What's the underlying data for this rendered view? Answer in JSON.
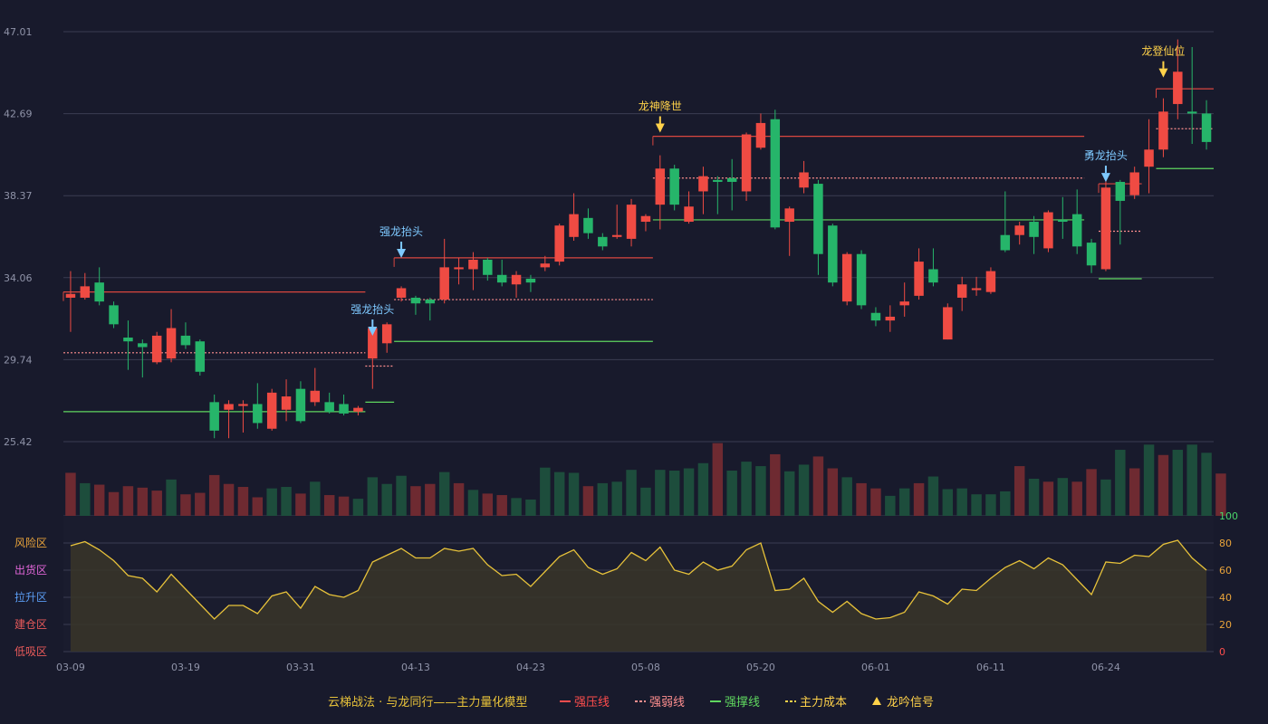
{
  "chart_data": {
    "type": "candlestick",
    "price_axis": {
      "ticks": [
        "47.01",
        "42.69",
        "38.37",
        "34.06",
        "29.74",
        "25.42"
      ],
      "range": [
        25.42,
        47.01
      ]
    },
    "x_ticks": [
      {
        "label": "03-09",
        "index": 0
      },
      {
        "label": "03-19",
        "index": 8
      },
      {
        "label": "03-31",
        "index": 16
      },
      {
        "label": "04-13",
        "index": 24
      },
      {
        "label": "04-23",
        "index": 32
      },
      {
        "label": "05-08",
        "index": 40
      },
      {
        "label": "05-20",
        "index": 48
      },
      {
        "label": "06-01",
        "index": 56
      },
      {
        "label": "06-11",
        "index": 64
      },
      {
        "label": "06-24",
        "index": 72
      }
    ],
    "candles": [
      [
        33.0,
        33.2,
        31.2,
        34.4
      ],
      [
        33.0,
        33.6,
        32.9,
        34.3
      ],
      [
        33.8,
        32.8,
        32.6,
        34.6
      ],
      [
        32.6,
        31.6,
        31.4,
        32.8
      ],
      [
        30.9,
        30.7,
        29.2,
        31.8
      ],
      [
        30.6,
        30.4,
        28.8,
        30.8
      ],
      [
        29.6,
        31.0,
        29.5,
        31.2
      ],
      [
        29.8,
        31.4,
        29.6,
        32.4
      ],
      [
        31.0,
        30.5,
        30.3,
        31.7
      ],
      [
        30.7,
        29.1,
        28.9,
        30.8
      ],
      [
        27.5,
        26.0,
        25.6,
        27.9
      ],
      [
        27.1,
        27.4,
        25.6,
        27.6
      ],
      [
        27.3,
        27.4,
        25.9,
        27.6
      ],
      [
        27.4,
        26.4,
        26.1,
        28.5
      ],
      [
        26.1,
        28.0,
        26.0,
        28.2
      ],
      [
        27.1,
        27.8,
        26.5,
        28.7
      ],
      [
        28.2,
        26.5,
        26.4,
        28.6
      ],
      [
        27.5,
        28.1,
        27.3,
        29.3
      ],
      [
        27.5,
        27.0,
        26.9,
        28.0
      ],
      [
        27.4,
        26.9,
        26.8,
        27.9
      ],
      [
        27.0,
        27.2,
        26.8,
        27.3
      ],
      [
        29.8,
        31.4,
        28.2,
        31.5
      ],
      [
        30.6,
        31.6,
        30.1,
        31.7
      ],
      [
        33.0,
        33.5,
        32.8,
        33.6
      ],
      [
        33.0,
        32.7,
        32.1,
        33.1
      ],
      [
        32.9,
        32.7,
        31.8,
        33.0
      ],
      [
        32.9,
        34.6,
        32.7,
        36.1
      ],
      [
        34.5,
        34.6,
        33.7,
        35.1
      ],
      [
        34.5,
        35.0,
        33.4,
        35.4
      ],
      [
        35.0,
        34.2,
        33.9,
        35.1
      ],
      [
        34.2,
        33.8,
        33.6,
        35.0
      ],
      [
        33.7,
        34.2,
        33.0,
        34.4
      ],
      [
        34.0,
        33.8,
        33.3,
        34.2
      ],
      [
        34.6,
        34.8,
        34.4,
        35.2
      ],
      [
        34.9,
        36.8,
        34.7,
        36.9
      ],
      [
        36.2,
        37.4,
        36.0,
        38.5
      ],
      [
        37.2,
        36.4,
        36.1,
        37.7
      ],
      [
        36.2,
        35.7,
        35.5,
        36.4
      ],
      [
        36.2,
        36.3,
        36.1,
        37.9
      ],
      [
        36.1,
        37.9,
        35.7,
        38.2
      ],
      [
        37.0,
        37.3,
        36.5,
        37.4
      ],
      [
        37.9,
        39.8,
        36.6,
        40.5
      ],
      [
        39.8,
        37.9,
        37.6,
        40.0
      ],
      [
        37.0,
        37.8,
        36.9,
        38.6
      ],
      [
        38.6,
        39.4,
        37.4,
        39.9
      ],
      [
        39.2,
        39.1,
        37.4,
        39.4
      ],
      [
        39.3,
        39.1,
        37.6,
        40.3
      ],
      [
        38.6,
        41.6,
        38.1,
        41.7
      ],
      [
        40.9,
        42.2,
        40.8,
        42.7
      ],
      [
        42.4,
        36.7,
        36.6,
        42.9
      ],
      [
        37.0,
        37.7,
        35.2,
        37.8
      ],
      [
        38.8,
        39.6,
        38.5,
        40.2
      ],
      [
        39.0,
        35.3,
        34.2,
        39.2
      ],
      [
        36.8,
        33.8,
        33.6,
        36.9
      ],
      [
        32.8,
        35.3,
        32.6,
        35.4
      ],
      [
        35.3,
        32.6,
        32.4,
        35.5
      ],
      [
        32.2,
        31.8,
        31.5,
        32.5
      ],
      [
        31.8,
        32.0,
        31.2,
        32.6
      ],
      [
        32.6,
        32.8,
        32.0,
        33.8
      ],
      [
        33.1,
        34.9,
        32.9,
        35.6
      ],
      [
        34.5,
        33.8,
        33.6,
        35.6
      ],
      [
        30.8,
        32.5,
        30.8,
        32.7
      ],
      [
        33.0,
        33.7,
        32.3,
        34.1
      ],
      [
        33.4,
        33.5,
        33.1,
        34.1
      ],
      [
        33.3,
        34.4,
        33.2,
        34.6
      ],
      [
        36.3,
        35.5,
        35.4,
        38.6
      ],
      [
        36.3,
        36.8,
        35.8,
        37.0
      ],
      [
        37.0,
        36.2,
        35.3,
        37.3
      ],
      [
        35.6,
        37.5,
        35.4,
        37.6
      ],
      [
        37.1,
        37.0,
        36.1,
        38.3
      ],
      [
        37.4,
        35.7,
        35.3,
        38.7
      ],
      [
        35.9,
        34.7,
        34.3,
        36.1
      ],
      [
        34.5,
        38.8,
        34.4,
        39.2
      ],
      [
        39.1,
        38.1,
        35.8,
        39.2
      ],
      [
        38.4,
        39.6,
        38.2,
        39.9
      ],
      [
        39.9,
        40.8,
        38.5,
        42.4
      ],
      [
        40.8,
        42.8,
        40.4,
        43.5
      ],
      [
        43.2,
        44.9,
        42.4,
        46.6
      ],
      [
        42.8,
        42.7,
        41.1,
        46.2
      ],
      [
        42.7,
        41.2,
        40.8,
        43.4
      ]
    ],
    "volume": [
      {
        "v": 0.58,
        "up": true
      },
      {
        "v": 0.44,
        "up": false
      },
      {
        "v": 0.42,
        "up": true
      },
      {
        "v": 0.32,
        "up": true
      },
      {
        "v": 0.4,
        "up": true
      },
      {
        "v": 0.38,
        "up": true
      },
      {
        "v": 0.34,
        "up": true
      },
      {
        "v": 0.49,
        "up": false
      },
      {
        "v": 0.29,
        "up": true
      },
      {
        "v": 0.31,
        "up": true
      },
      {
        "v": 0.55,
        "up": true
      },
      {
        "v": 0.43,
        "up": true
      },
      {
        "v": 0.39,
        "up": true
      },
      {
        "v": 0.25,
        "up": true
      },
      {
        "v": 0.37,
        "up": false
      },
      {
        "v": 0.39,
        "up": false
      },
      {
        "v": 0.3,
        "up": true
      },
      {
        "v": 0.46,
        "up": false
      },
      {
        "v": 0.28,
        "up": true
      },
      {
        "v": 0.26,
        "up": true
      },
      {
        "v": 0.23,
        "up": false
      },
      {
        "v": 0.52,
        "up": false
      },
      {
        "v": 0.43,
        "up": false
      },
      {
        "v": 0.54,
        "up": false
      },
      {
        "v": 0.4,
        "up": true
      },
      {
        "v": 0.43,
        "up": true
      },
      {
        "v": 0.59,
        "up": false
      },
      {
        "v": 0.44,
        "up": true
      },
      {
        "v": 0.35,
        "up": false
      },
      {
        "v": 0.3,
        "up": true
      },
      {
        "v": 0.28,
        "up": true
      },
      {
        "v": 0.24,
        "up": false
      },
      {
        "v": 0.22,
        "up": false
      },
      {
        "v": 0.65,
        "up": false
      },
      {
        "v": 0.59,
        "up": false
      },
      {
        "v": 0.58,
        "up": false
      },
      {
        "v": 0.4,
        "up": true
      },
      {
        "v": 0.44,
        "up": false
      },
      {
        "v": 0.46,
        "up": false
      },
      {
        "v": 0.62,
        "up": false
      },
      {
        "v": 0.38,
        "up": false
      },
      {
        "v": 0.62,
        "up": false
      },
      {
        "v": 0.61,
        "up": false
      },
      {
        "v": 0.64,
        "up": false
      },
      {
        "v": 0.71,
        "up": false
      },
      {
        "v": 0.98,
        "up": true
      },
      {
        "v": 0.61,
        "up": false
      },
      {
        "v": 0.73,
        "up": false
      },
      {
        "v": 0.67,
        "up": false
      },
      {
        "v": 0.83,
        "up": true
      },
      {
        "v": 0.6,
        "up": false
      },
      {
        "v": 0.69,
        "up": false
      },
      {
        "v": 0.8,
        "up": true
      },
      {
        "v": 0.64,
        "up": true
      },
      {
        "v": 0.52,
        "up": false
      },
      {
        "v": 0.44,
        "up": true
      },
      {
        "v": 0.37,
        "up": true
      },
      {
        "v": 0.27,
        "up": false
      },
      {
        "v": 0.37,
        "up": false
      },
      {
        "v": 0.44,
        "up": true
      },
      {
        "v": 0.53,
        "up": false
      },
      {
        "v": 0.36,
        "up": false
      },
      {
        "v": 0.37,
        "up": false
      },
      {
        "v": 0.29,
        "up": false
      },
      {
        "v": 0.29,
        "up": false
      },
      {
        "v": 0.33,
        "up": false
      },
      {
        "v": 0.67,
        "up": true
      },
      {
        "v": 0.5,
        "up": false
      },
      {
        "v": 0.46,
        "up": true
      },
      {
        "v": 0.51,
        "up": false
      },
      {
        "v": 0.46,
        "up": true
      },
      {
        "v": 0.63,
        "up": true
      },
      {
        "v": 0.49,
        "up": false
      },
      {
        "v": 0.89,
        "up": false
      },
      {
        "v": 0.64,
        "up": true
      },
      {
        "v": 0.96,
        "up": false
      },
      {
        "v": 0.82,
        "up": true
      },
      {
        "v": 0.89,
        "up": false
      },
      {
        "v": 0.96,
        "up": false
      },
      {
        "v": 0.85,
        "up": false
      },
      {
        "v": 0.57,
        "up": true
      }
    ],
    "indicator": {
      "axis_ticks": [
        "100",
        "80",
        "60",
        "40",
        "20",
        "0"
      ],
      "range": [
        0,
        100
      ],
      "values": [
        78,
        81,
        75,
        67,
        56,
        54,
        44,
        57,
        46,
        35,
        24,
        34,
        34,
        28,
        41,
        44,
        32,
        48,
        42,
        40,
        45,
        66,
        71,
        76,
        69,
        69,
        76,
        74,
        76,
        64,
        56,
        57,
        48,
        59,
        70,
        75,
        62,
        57,
        61,
        73,
        67,
        77,
        60,
        57,
        66,
        60,
        63,
        75,
        80,
        45,
        46,
        54,
        37,
        29,
        37,
        28,
        24,
        25,
        29,
        44,
        41,
        35,
        46,
        45,
        54,
        62,
        67,
        61,
        69,
        64,
        53,
        42,
        66,
        65,
        71,
        70,
        79,
        82,
        69,
        60
      ]
    },
    "zones": [
      {
        "label": "风险区",
        "color": "#e8a33a"
      },
      {
        "label": "出货区",
        "color": "#e066d8"
      },
      {
        "label": "拉升区",
        "color": "#5a9cf2"
      },
      {
        "label": "建仓区",
        "color": "#e85a5a"
      },
      {
        "label": "低吸区",
        "color": "#e85a5a"
      }
    ],
    "levels": [
      {
        "kind": "strong_resistance",
        "from": 0,
        "to": 20,
        "price": 33.3
      },
      {
        "kind": "weak",
        "from": 0,
        "to": 20,
        "price": 30.1
      },
      {
        "kind": "support",
        "from": 0,
        "to": 20,
        "price": 27.0
      },
      {
        "kind": "weak",
        "from": 21,
        "to": 22,
        "price": 29.4
      },
      {
        "kind": "support",
        "from": 21,
        "to": 22,
        "price": 27.5
      },
      {
        "kind": "strong_resistance",
        "from": 23,
        "to": 40,
        "price": 35.1
      },
      {
        "kind": "weak",
        "from": 23,
        "to": 40,
        "price": 32.9
      },
      {
        "kind": "support",
        "from": 23,
        "to": 40,
        "price": 30.7
      },
      {
        "kind": "strong_resistance",
        "from": 41,
        "to": 70,
        "price": 41.5
      },
      {
        "kind": "weak",
        "from": 41,
        "to": 70,
        "price": 39.3
      },
      {
        "kind": "support",
        "from": 41,
        "to": 70,
        "price": 37.1
      },
      {
        "kind": "strong_resistance",
        "from": 72,
        "to": 74,
        "price": 39.0
      },
      {
        "kind": "weak",
        "from": 72,
        "to": 74,
        "price": 36.5
      },
      {
        "kind": "support",
        "from": 72,
        "to": 74,
        "price": 34.0
      },
      {
        "kind": "strong_resistance",
        "from": 76,
        "to": 79,
        "price": 44.0
      },
      {
        "kind": "weak",
        "from": 76,
        "to": 79,
        "price": 41.9
      },
      {
        "kind": "support",
        "from": 76,
        "to": 79,
        "price": 39.8
      }
    ],
    "signals": [
      {
        "index": 21,
        "label": "强龙抬头",
        "color": "#7ec9ff",
        "price": 30.9
      },
      {
        "index": 23,
        "label": "强龙抬头",
        "color": "#7ec9ff",
        "price": 35.0
      },
      {
        "index": 41,
        "label": "龙神降世",
        "color": "#ffd24a",
        "price": 41.6
      },
      {
        "index": 72,
        "label": "勇龙抬头",
        "color": "#7ec9ff",
        "price": 39.0
      },
      {
        "index": 76,
        "label": "龙登仙位",
        "color": "#ffd24a",
        "price": 44.5
      }
    ],
    "colors": {
      "up": "#ef4b43",
      "down": "#26b56a",
      "vol_up": "#6e2a31",
      "vol_down": "#1d4d3c",
      "resistance": "#d9463f",
      "weak": "#ff8f8f",
      "support": "#5fd65f",
      "cost": "#e7c23a",
      "grid": "#3a3c52",
      "axis_text": "#8f93a8"
    },
    "legend": {
      "title": "云梯战法 · 与龙同行——主力量化模型",
      "items": [
        {
          "label": "强压线",
          "color": "#ff4d4d",
          "style": "solid"
        },
        {
          "label": "强弱线",
          "color": "#ff8f8f",
          "style": "dashed"
        },
        {
          "label": "强撑线",
          "color": "#5fd65f",
          "style": "solid"
        },
        {
          "label": "主力成本",
          "color": "#ffd24a",
          "style": "dashed"
        },
        {
          "label": "龙吟信号",
          "color": "#ffd24a",
          "style": "triangle"
        }
      ]
    }
  }
}
